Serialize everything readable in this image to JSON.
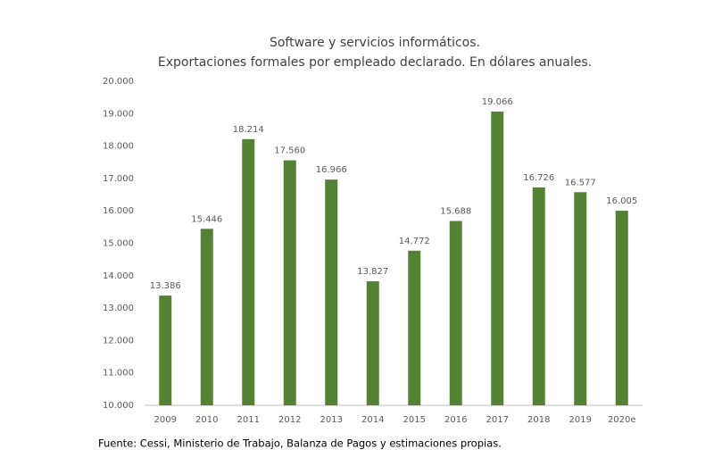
{
  "chart_data": {
    "type": "bar",
    "title": "Software y servicios informáticos.",
    "subtitle": "Exportaciones formales por empleado declarado. En dólares anuales.",
    "categories": [
      "2009",
      "2010",
      "2011",
      "2012",
      "2013",
      "2014",
      "2015",
      "2016",
      "2017",
      "2018",
      "2019",
      "2020e"
    ],
    "values": [
      13386,
      15446,
      18214,
      17560,
      16966,
      13827,
      14772,
      15688,
      19066,
      16726,
      16577,
      16005
    ],
    "value_labels": [
      "13.386",
      "15.446",
      "18.214",
      "17.560",
      "16.966",
      "13.827",
      "14.772",
      "15.688",
      "19.066",
      "16.726",
      "16.577",
      "16.005"
    ],
    "color": "#548235",
    "ylim": [
      10000,
      20000
    ],
    "yticks": [
      {
        "value": 10000,
        "label": "10.000"
      },
      {
        "value": 11000,
        "label": "11.000"
      },
      {
        "value": 12000,
        "label": "12.000"
      },
      {
        "value": 13000,
        "label": "13.000"
      },
      {
        "value": 14000,
        "label": "14.000"
      },
      {
        "value": 15000,
        "label": "15.000"
      },
      {
        "value": 16000,
        "label": "16.000"
      },
      {
        "value": 17000,
        "label": "17.000"
      },
      {
        "value": 18000,
        "label": "18.000"
      },
      {
        "value": 19000,
        "label": "19.000"
      },
      {
        "value": 20000,
        "label": "20.000"
      }
    ],
    "grid": false,
    "source": "Fuente: Cessi, Ministerio de Trabajo, Balanza de Pagos y estimaciones propias."
  }
}
